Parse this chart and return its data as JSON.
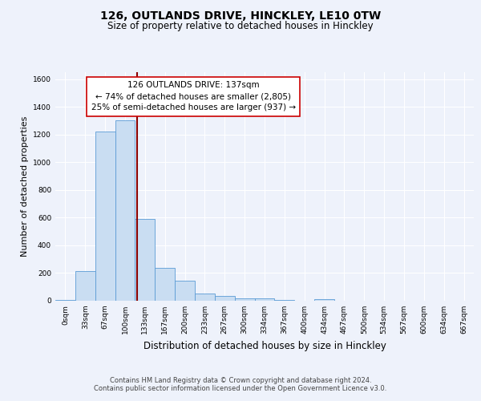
{
  "title_line1": "126, OUTLANDS DRIVE, HINCKLEY, LE10 0TW",
  "title_line2": "Size of property relative to detached houses in Hinckley",
  "xlabel": "Distribution of detached houses by size in Hinckley",
  "ylabel": "Number of detached properties",
  "bin_labels": [
    "0sqm",
    "33sqm",
    "67sqm",
    "100sqm",
    "133sqm",
    "167sqm",
    "200sqm",
    "233sqm",
    "267sqm",
    "300sqm",
    "334sqm",
    "367sqm",
    "400sqm",
    "434sqm",
    "467sqm",
    "500sqm",
    "534sqm",
    "567sqm",
    "600sqm",
    "634sqm",
    "667sqm"
  ],
  "bar_heights": [
    5,
    215,
    1220,
    1300,
    590,
    235,
    145,
    55,
    35,
    20,
    15,
    5,
    0,
    10,
    0,
    0,
    0,
    0,
    0,
    0,
    0
  ],
  "bar_color": "#c9ddf2",
  "bar_edge_color": "#5b9bd5",
  "vline_color": "#8b0000",
  "property_sqm": 137,
  "annotation_line1": "126 OUTLANDS DRIVE: 137sqm",
  "annotation_line2": "← 74% of detached houses are smaller (2,805)",
  "annotation_line3": "25% of semi-detached houses are larger (937) →",
  "annotation_box_color": "white",
  "annotation_box_edge": "#cc0000",
  "ylim": [
    0,
    1650
  ],
  "yticks": [
    0,
    200,
    400,
    600,
    800,
    1000,
    1200,
    1400,
    1600
  ],
  "footer_text": "Contains HM Land Registry data © Crown copyright and database right 2024.\nContains public sector information licensed under the Open Government Licence v3.0.",
  "bg_color": "#eef2fb",
  "plot_bg_color": "#eef2fb",
  "grid_color": "#ffffff",
  "title1_fontsize": 10,
  "title2_fontsize": 8.5,
  "ylabel_fontsize": 8,
  "xlabel_fontsize": 8.5,
  "tick_fontsize": 6.5,
  "annotation_fontsize": 7.5,
  "footer_fontsize": 6
}
